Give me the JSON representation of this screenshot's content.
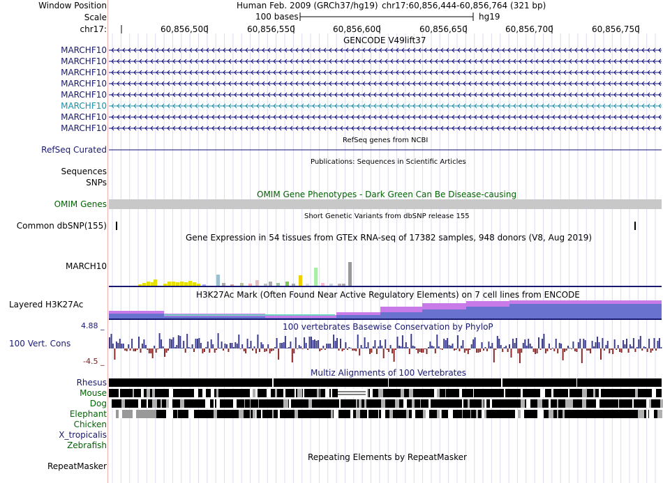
{
  "header": {
    "window_position_label": "Window Position",
    "scale_label": "Scale",
    "chrom_label": "chr17:",
    "assembly_text": "Human Feb. 2009 (GRCh37/hg19)",
    "position_text": "chr17:60,856,444-60,856,764 (321 bp)",
    "scale_text": "100 bases",
    "scale_db": "hg19",
    "ruler_ticks": [
      "60,856,500",
      "60,856,550",
      "60,856,600",
      "60,856,650",
      "60,856,700",
      "60,856,750"
    ]
  },
  "gencode": {
    "title": "GENCODE V49lift37",
    "transcripts": [
      "MARCHF10",
      "MARCHF10",
      "MARCHF10",
      "MARCHF10",
      "MARCHF10",
      "MARCHF10",
      "MARCHF10",
      "MARCHF10"
    ],
    "highlighted_index": 5
  },
  "refseq": {
    "title": "RefSeq genes from NCBI",
    "label": "RefSeq Curated"
  },
  "publications": {
    "title": "Publications: Sequences in Scientific Articles",
    "label": "Sequences"
  },
  "snps_label": "SNPs",
  "omim": {
    "title": "OMIM Gene Phenotypes - Dark Green Can Be Disease-causing",
    "label": "OMIM Genes"
  },
  "dbsnp": {
    "title": "Short Genetic Variants from dbSNP release 155",
    "label": "Common dbSNP(155)"
  },
  "gtex": {
    "title": "Gene Expression in 54 tissues from GTEx RNA-seq of 17382 samples, 948 donors (V8, Aug 2019)",
    "label": "MARCH10"
  },
  "h3k27ac": {
    "title": "H3K27Ac Mark (Often Found Near Active Regulatory Elements) on 7 cell lines from ENCODE",
    "label": "Layered H3K27Ac"
  },
  "conservation": {
    "title": "100 vertebrates Basewise Conservation by PhyloP",
    "label": "100 Vert. Cons",
    "max_label": "4.88 _",
    "min_label": "-4.5 _"
  },
  "multiz": {
    "title": "Multiz Alignments of 100 Vertebrates",
    "species": [
      "Rhesus",
      "Mouse",
      "Dog",
      "Elephant",
      "Chicken",
      "X_tropicalis",
      "Zebrafish"
    ]
  },
  "repeatmasker": {
    "title": "Repeating Elements by RepeatMasker",
    "label": "RepeatMasker"
  },
  "colors": {
    "navy": "#191970",
    "gencode_blue": "#0c0c78",
    "highlight_teal": "#1a8fa8",
    "omim_gray": "#c8c8c8",
    "phylop_pos": "#3c3c8c",
    "phylop_neg": "#8c2828",
    "h3k27ac_blue": "#6a72d0",
    "h3k27ac_purple": "#c87ae8"
  }
}
